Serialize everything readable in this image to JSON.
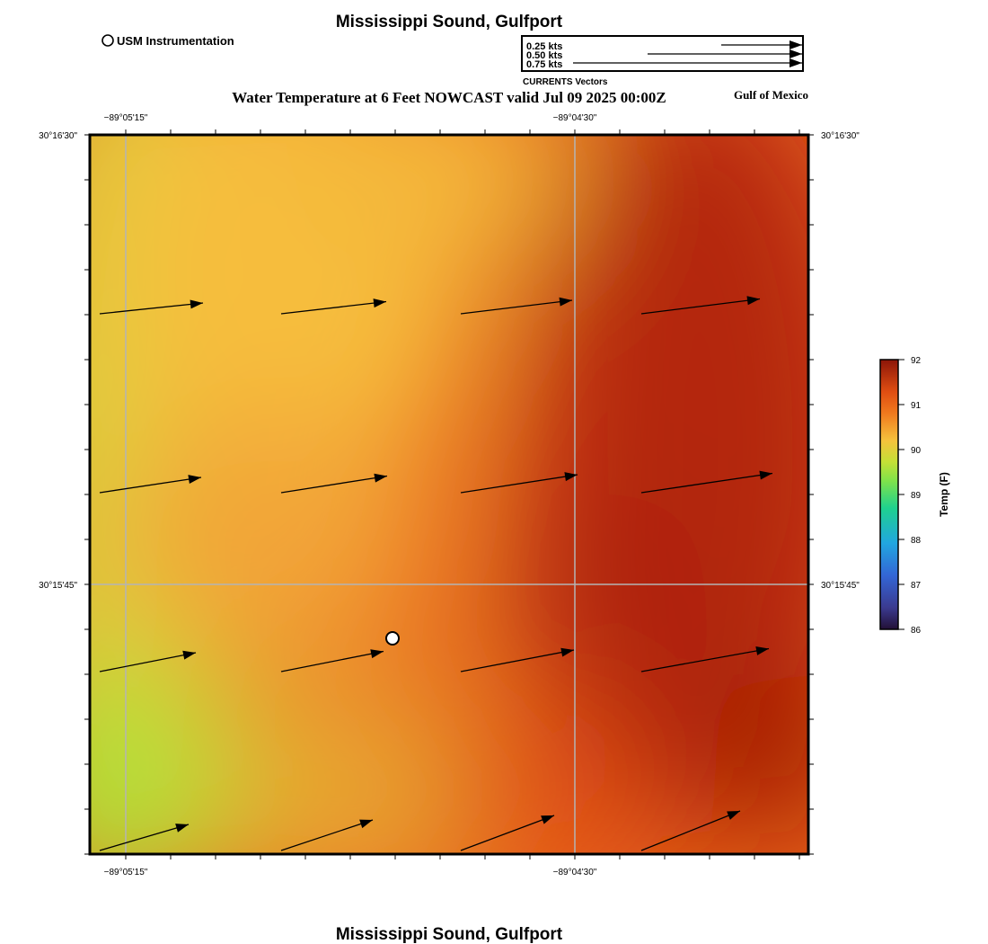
{
  "header": {
    "title": "Mississippi Sound, Gulfport",
    "legend_marker_label": "USM Instrumentation",
    "subtitle": "Water Temperature at 6 Feet NOWCAST valid Jul 09 2025 00:00Z",
    "region": "Gulf of Mexico"
  },
  "footer": {
    "title": "Mississippi Sound, Gulfport"
  },
  "vector_legend": {
    "caption": "CURRENTS Vectors",
    "items": [
      {
        "label": "0.25 kts",
        "speed_kts": 0.25
      },
      {
        "label": "0.50 kts",
        "speed_kts": 0.5
      },
      {
        "label": "0.75 kts",
        "speed_kts": 0.75
      }
    ]
  },
  "axes": {
    "lon_labels": [
      "−89°05'15\"",
      "−89°04'30\""
    ],
    "lat_labels": [
      "30°16'30\"",
      "30°15'45\""
    ]
  },
  "colorbar": {
    "label": "Temp (F)",
    "min": 86,
    "max": 92,
    "ticks": [
      "86",
      "87",
      "88",
      "89",
      "90",
      "91",
      "92"
    ]
  },
  "station": {
    "name": "USM Instrumentation",
    "lon_frac": 0.42,
    "lat_frac": 0.7
  },
  "colors": {
    "grid": "#b4b4b4",
    "vector": "#000000",
    "frame": "#000000"
  }
}
